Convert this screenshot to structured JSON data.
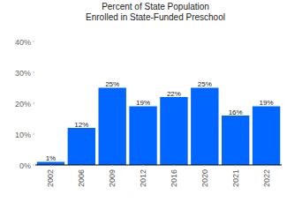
{
  "chart_data": {
    "type": "bar",
    "title": "Percent of State Population\nEnrolled in State-Funded Preschool",
    "categories": [
      "2002",
      "2006",
      "2009",
      "2012",
      "2016",
      "2020",
      "2021",
      "2022"
    ],
    "values": [
      1,
      12,
      25,
      19,
      22,
      25,
      16,
      19
    ],
    "value_labels": [
      "1%",
      "12%",
      "25%",
      "19%",
      "22%",
      "25%",
      "16%",
      "19%"
    ],
    "color": "#0066ff",
    "ylim": [
      0,
      40
    ],
    "yticks": [
      {
        "value": 0,
        "label": "0%"
      },
      {
        "value": 10,
        "label": "10%"
      },
      {
        "value": 20,
        "label": "20%"
      },
      {
        "value": 30,
        "label": "30%"
      },
      {
        "value": 40,
        "label": "40%"
      }
    ],
    "grid": false,
    "data_labels": true
  }
}
